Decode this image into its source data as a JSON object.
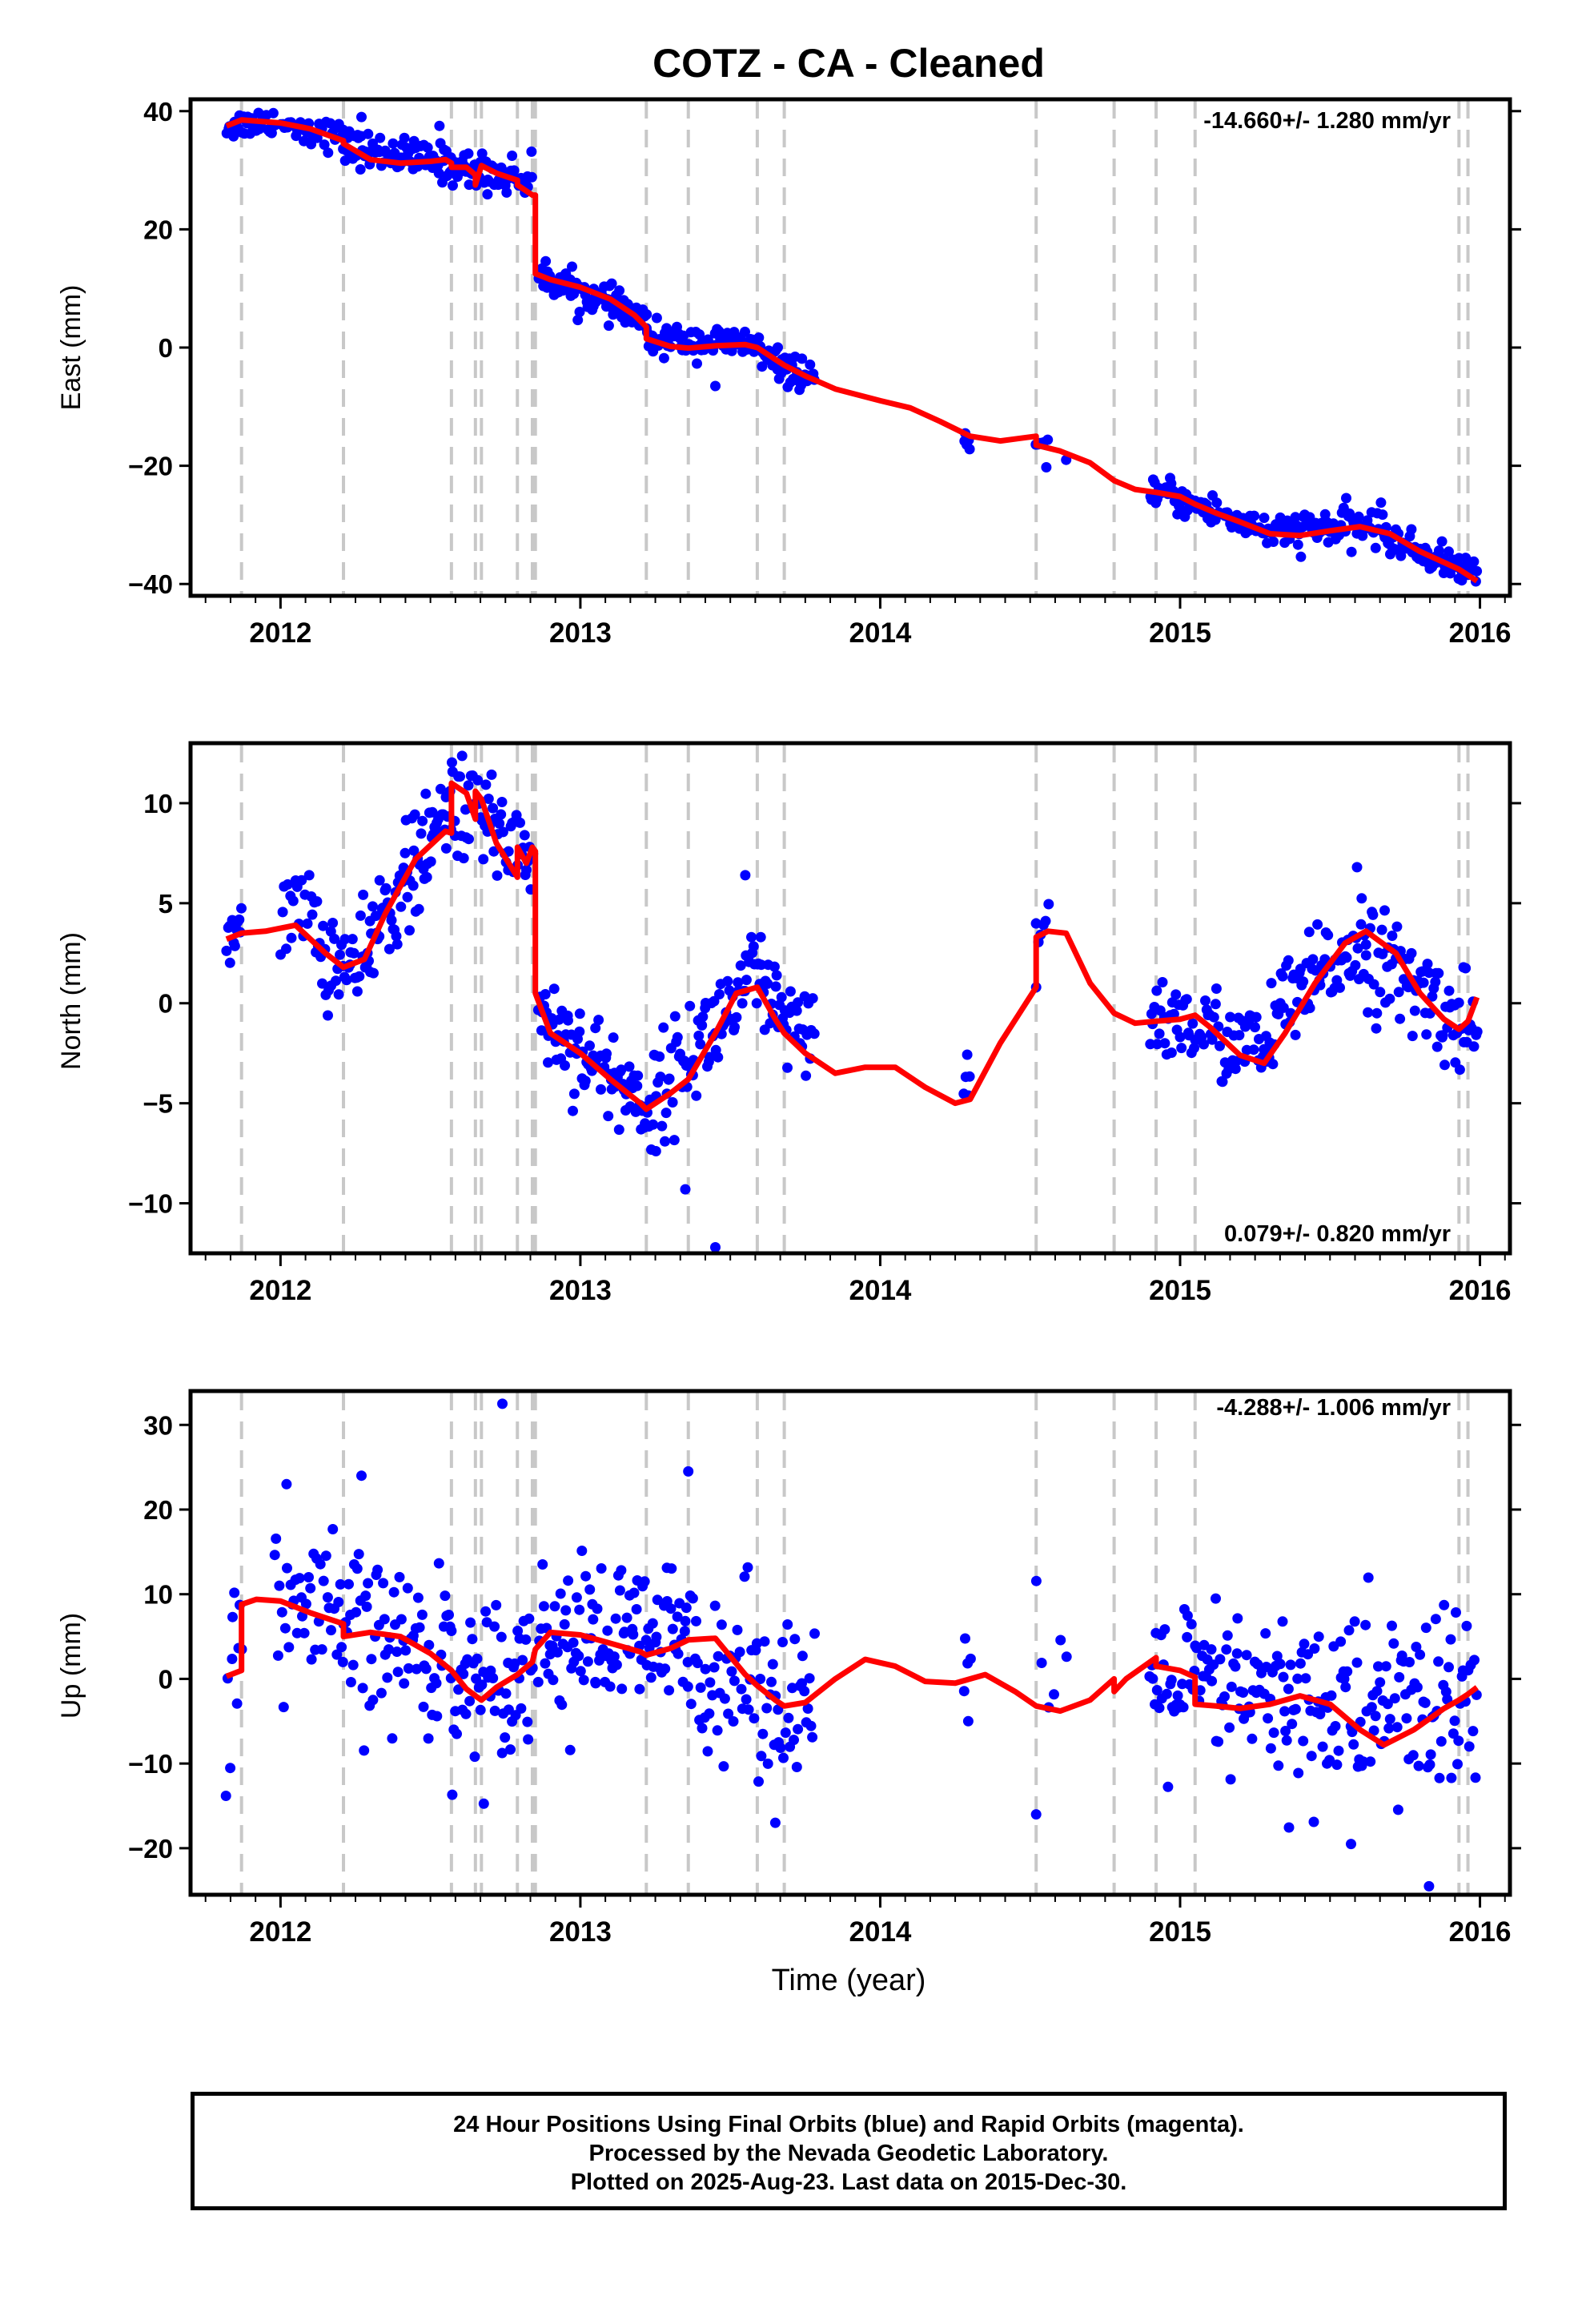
{
  "title": "COTZ  - CA - Cleaned",
  "xlabel": "Time (year)",
  "footer": {
    "line1": "24 Hour Positions Using Final Orbits (blue) and Rapid Orbits (magenta).",
    "line2": "Processed by the Nevada Geodetic Laboratory.",
    "line3": "Plotted on 2025-Aug-23. Last data on 2015-Dec-30."
  },
  "colors": {
    "data": "#0000ff",
    "model": "#ff0000",
    "steps": "#c8c8c8",
    "axis": "#000000"
  },
  "chart_data": [
    {
      "type": "scatter",
      "component": "east",
      "ylabel": "East (mm)",
      "rate": "-14.660+/- 1.280 mm/yr",
      "xlim": [
        2011.7,
        2016.1
      ],
      "ylim": [
        -42,
        42
      ],
      "xticks": [
        2012,
        2013,
        2014,
        2015,
        2016
      ],
      "yticks": [
        -40,
        -20,
        0,
        20,
        40
      ],
      "steps": [
        2011.87,
        2012.21,
        2012.57,
        2012.65,
        2012.67,
        2012.79,
        2012.84,
        2012.85,
        2013.22,
        2013.36,
        2013.59,
        2013.68,
        2014.52,
        2014.78,
        2014.92,
        2015.05,
        2015.93,
        2015.96
      ],
      "segments": [
        {
          "x0": 2011.82,
          "x1": 2011.98,
          "y0": 37.5,
          "y1": 38.5,
          "noise": 1.2,
          "n": 30
        },
        {
          "x0": 2012.0,
          "x1": 2012.21,
          "y0": 38,
          "y1": 35.5,
          "noise": 1.3,
          "n": 30
        },
        {
          "x0": 2012.21,
          "x1": 2012.57,
          "y0": 34,
          "y1": 31,
          "noise": 1.5,
          "n": 80
        },
        {
          "x0": 2012.57,
          "x1": 2012.84,
          "y0": 30.5,
          "y1": 28.5,
          "noise": 1.6,
          "n": 60
        },
        {
          "x0": 2012.86,
          "x1": 2013.22,
          "y0": 12.5,
          "y1": 4.5,
          "noise": 1.4,
          "n": 90
        },
        {
          "x0": 2013.22,
          "x1": 2013.6,
          "y0": 1.5,
          "y1": 0.5,
          "noise": 1.3,
          "n": 80
        },
        {
          "x0": 2013.6,
          "x1": 2013.78,
          "y0": -1.5,
          "y1": -5.5,
          "noise": 1.3,
          "n": 40
        },
        {
          "x0": 2014.28,
          "x1": 2014.3,
          "y0": -16,
          "y1": -17.5,
          "noise": 0.8,
          "n": 5
        },
        {
          "x0": 2014.52,
          "x1": 2014.56,
          "y0": -16.5,
          "y1": -18,
          "noise": 1.0,
          "n": 6
        },
        {
          "x0": 2014.9,
          "x1": 2015.35,
          "y0": -24,
          "y1": -32,
          "noise": 1.4,
          "n": 90
        },
        {
          "x0": 2015.35,
          "x1": 2015.68,
          "y0": -31,
          "y1": -30,
          "noise": 1.6,
          "n": 70
        },
        {
          "x0": 2015.68,
          "x1": 2015.99,
          "y0": -32,
          "y1": -38.5,
          "noise": 1.3,
          "n": 70
        }
      ],
      "outliers": [
        [
          2012.53,
          37.5
        ],
        [
          2012.27,
          39
        ],
        [
          2013.45,
          -6.5
        ],
        [
          2014.62,
          -19
        ]
      ],
      "model": [
        [
          2011.82,
          37.5
        ],
        [
          2011.87,
          38.5
        ],
        [
          2012.0,
          38
        ],
        [
          2012.1,
          37
        ],
        [
          2012.21,
          35
        ],
        [
          2012.21,
          34.5
        ],
        [
          2012.3,
          31.8
        ],
        [
          2012.4,
          31.2
        ],
        [
          2012.5,
          31.5
        ],
        [
          2012.55,
          31.8
        ],
        [
          2012.57,
          31.2
        ],
        [
          2012.57,
          30.5
        ],
        [
          2012.62,
          30.5
        ],
        [
          2012.65,
          29.2
        ],
        [
          2012.65,
          27.5
        ],
        [
          2012.67,
          30.8
        ],
        [
          2012.72,
          29.5
        ],
        [
          2012.79,
          28.3
        ],
        [
          2012.79,
          27.5
        ],
        [
          2012.84,
          25.8
        ],
        [
          2012.85,
          25.8
        ],
        [
          2012.85,
          12.5
        ],
        [
          2012.9,
          11.5
        ],
        [
          2013.0,
          10.2
        ],
        [
          2013.1,
          8.2
        ],
        [
          2013.18,
          5.5
        ],
        [
          2013.22,
          3.5
        ],
        [
          2013.22,
          1.5
        ],
        [
          2013.3,
          0.2
        ],
        [
          2013.36,
          -0.1
        ],
        [
          2013.45,
          0.3
        ],
        [
          2013.55,
          0.5
        ],
        [
          2013.59,
          0
        ],
        [
          2013.65,
          -2
        ],
        [
          2013.68,
          -3
        ],
        [
          2013.75,
          -4.8
        ],
        [
          2013.85,
          -7
        ],
        [
          2014.0,
          -9
        ],
        [
          2014.1,
          -10.2
        ],
        [
          2014.2,
          -12.5
        ],
        [
          2014.3,
          -15
        ],
        [
          2014.4,
          -15.8
        ],
        [
          2014.52,
          -15
        ],
        [
          2014.52,
          -16.5
        ],
        [
          2014.6,
          -17.5
        ],
        [
          2014.7,
          -19.5
        ],
        [
          2014.78,
          -22.5
        ],
        [
          2014.85,
          -24
        ],
        [
          2014.92,
          -24.5
        ],
        [
          2015.0,
          -25.2
        ],
        [
          2015.05,
          -26.5
        ],
        [
          2015.12,
          -28
        ],
        [
          2015.2,
          -29.5
        ],
        [
          2015.3,
          -31.5
        ],
        [
          2015.4,
          -31.8
        ],
        [
          2015.5,
          -31
        ],
        [
          2015.6,
          -30.3
        ],
        [
          2015.7,
          -31.5
        ],
        [
          2015.8,
          -34.5
        ],
        [
          2015.93,
          -37.5
        ],
        [
          2015.99,
          -39.5
        ]
      ]
    },
    {
      "type": "scatter",
      "component": "north",
      "ylabel": "North (mm)",
      "rate": "0.079+/- 0.820 mm/yr",
      "xlim": [
        2011.7,
        2016.1
      ],
      "ylim": [
        -12.5,
        13
      ],
      "xticks": [
        2012,
        2013,
        2014,
        2015,
        2016
      ],
      "yticks": [
        -10,
        -5,
        0,
        5,
        10
      ],
      "steps": [
        2011.87,
        2012.21,
        2012.57,
        2012.65,
        2012.67,
        2012.79,
        2012.84,
        2012.85,
        2013.22,
        2013.36,
        2013.59,
        2013.68,
        2014.52,
        2014.78,
        2014.92,
        2015.05,
        2015.93,
        2015.96
      ],
      "segments": [
        {
          "x0": 2011.82,
          "x1": 2011.87,
          "y0": 3.2,
          "y1": 4.2,
          "noise": 0.8,
          "n": 12
        },
        {
          "x0": 2012.0,
          "x1": 2012.12,
          "y0": 4.5,
          "y1": 4.8,
          "noise": 1.0,
          "n": 20
        },
        {
          "x0": 2012.12,
          "x1": 2012.3,
          "y0": 2.5,
          "y1": 1.5,
          "noise": 1.2,
          "n": 40
        },
        {
          "x0": 2012.3,
          "x1": 2012.57,
          "y0": 3.5,
          "y1": 9.5,
          "noise": 1.3,
          "n": 70
        },
        {
          "x0": 2012.57,
          "x1": 2012.84,
          "y0": 10.5,
          "y1": 7.5,
          "noise": 1.4,
          "n": 60
        },
        {
          "x0": 2012.86,
          "x1": 2013.25,
          "y0": -0.5,
          "y1": -5.5,
          "noise": 1.2,
          "n": 90
        },
        {
          "x0": 2013.25,
          "x1": 2013.6,
          "y0": -4.5,
          "y1": 1.5,
          "noise": 1.3,
          "n": 80
        },
        {
          "x0": 2013.6,
          "x1": 2013.78,
          "y0": 0.5,
          "y1": -2.5,
          "noise": 1.2,
          "n": 40
        },
        {
          "x0": 2014.28,
          "x1": 2014.3,
          "y0": -3,
          "y1": -4.5,
          "noise": 1.0,
          "n": 5
        },
        {
          "x0": 2014.52,
          "x1": 2014.56,
          "y0": 3,
          "y1": 4.5,
          "noise": 1.2,
          "n": 6
        },
        {
          "x0": 2014.9,
          "x1": 2015.3,
          "y0": -0.5,
          "y1": -2.5,
          "noise": 1.1,
          "n": 80
        },
        {
          "x0": 2015.3,
          "x1": 2015.62,
          "y0": -1,
          "y1": 3.5,
          "noise": 1.2,
          "n": 70
        },
        {
          "x0": 2015.62,
          "x1": 2015.99,
          "y0": 2.5,
          "y1": -1.5,
          "noise": 1.3,
          "n": 80
        }
      ],
      "outliers": [
        [
          2013.35,
          -9.3
        ],
        [
          2013.45,
          -12.2
        ],
        [
          2013.55,
          6.4
        ],
        [
          2014.52,
          0.8
        ],
        [
          2015.59,
          6.8
        ]
      ],
      "model": [
        [
          2011.82,
          3.2
        ],
        [
          2011.87,
          3.5
        ],
        [
          2011.95,
          3.6
        ],
        [
          2012.05,
          3.9
        ],
        [
          2012.15,
          2.5
        ],
        [
          2012.21,
          1.8
        ],
        [
          2012.28,
          2.2
        ],
        [
          2012.35,
          4.5
        ],
        [
          2012.45,
          7.2
        ],
        [
          2012.55,
          8.6
        ],
        [
          2012.57,
          8.5
        ],
        [
          2012.57,
          11
        ],
        [
          2012.62,
          10.5
        ],
        [
          2012.65,
          9.2
        ],
        [
          2012.65,
          10.6
        ],
        [
          2012.67,
          10.2
        ],
        [
          2012.72,
          8
        ],
        [
          2012.79,
          6.3
        ],
        [
          2012.79,
          7.8
        ],
        [
          2012.82,
          7
        ],
        [
          2012.84,
          7.8
        ],
        [
          2012.85,
          7.6
        ],
        [
          2012.85,
          0.5
        ],
        [
          2012.9,
          -1.5
        ],
        [
          2013.0,
          -2.5
        ],
        [
          2013.1,
          -3.8
        ],
        [
          2013.2,
          -5
        ],
        [
          2013.22,
          -5.3
        ],
        [
          2013.3,
          -4.5
        ],
        [
          2013.36,
          -3.8
        ],
        [
          2013.45,
          -1.5
        ],
        [
          2013.52,
          0.5
        ],
        [
          2013.59,
          0.8
        ],
        [
          2013.65,
          -0.8
        ],
        [
          2013.68,
          -1.5
        ],
        [
          2013.75,
          -2.5
        ],
        [
          2013.85,
          -3.5
        ],
        [
          2013.95,
          -3.2
        ],
        [
          2014.05,
          -3.2
        ],
        [
          2014.15,
          -4.2
        ],
        [
          2014.25,
          -5
        ],
        [
          2014.3,
          -4.8
        ],
        [
          2014.4,
          -2
        ],
        [
          2014.52,
          0.8
        ],
        [
          2014.52,
          3.3
        ],
        [
          2014.56,
          3.6
        ],
        [
          2014.62,
          3.5
        ],
        [
          2014.7,
          1
        ],
        [
          2014.78,
          -0.5
        ],
        [
          2014.85,
          -1
        ],
        [
          2014.92,
          -0.9
        ],
        [
          2015.0,
          -0.8
        ],
        [
          2015.05,
          -0.6
        ],
        [
          2015.1,
          -1.2
        ],
        [
          2015.2,
          -2.6
        ],
        [
          2015.28,
          -3
        ],
        [
          2015.35,
          -1.5
        ],
        [
          2015.45,
          1
        ],
        [
          2015.55,
          3
        ],
        [
          2015.62,
          3.6
        ],
        [
          2015.72,
          2.5
        ],
        [
          2015.8,
          0.5
        ],
        [
          2015.88,
          -0.8
        ],
        [
          2015.93,
          -1.3
        ],
        [
          2015.96,
          -0.9
        ],
        [
          2015.99,
          0.3
        ]
      ]
    },
    {
      "type": "scatter",
      "component": "up",
      "ylabel": "Up (mm)",
      "rate": "-4.288+/- 1.006 mm/yr",
      "xlim": [
        2011.7,
        2016.1
      ],
      "ylim": [
        -25.5,
        34
      ],
      "xticks": [
        2012,
        2013,
        2014,
        2015,
        2016
      ],
      "yticks": [
        -20,
        -10,
        0,
        10,
        20,
        30
      ],
      "steps": [
        2011.87,
        2012.21,
        2012.57,
        2012.65,
        2012.67,
        2012.79,
        2012.84,
        2012.85,
        2013.22,
        2013.36,
        2013.59,
        2013.68,
        2014.52,
        2014.78,
        2014.92,
        2015.05,
        2015.93,
        2015.96
      ],
      "segments": [
        {
          "x0": 2011.82,
          "x1": 2011.87,
          "y0": 0,
          "y1": 2,
          "noise": 6,
          "n": 10
        },
        {
          "x0": 2011.98,
          "x1": 2012.21,
          "y0": 9,
          "y1": 6,
          "noise": 5,
          "n": 40
        },
        {
          "x0": 2012.21,
          "x1": 2012.57,
          "y0": 5,
          "y1": 3,
          "noise": 5,
          "n": 70
        },
        {
          "x0": 2012.57,
          "x1": 2012.84,
          "y0": -1,
          "y1": 2,
          "noise": 4.5,
          "n": 60
        },
        {
          "x0": 2012.86,
          "x1": 2013.36,
          "y0": 5,
          "y1": 4,
          "noise": 4.5,
          "n": 110
        },
        {
          "x0": 2013.36,
          "x1": 2013.78,
          "y0": 3,
          "y1": -3,
          "noise": 5,
          "n": 80
        },
        {
          "x0": 2014.28,
          "x1": 2014.3,
          "y0": 1,
          "y1": -2,
          "noise": 4,
          "n": 5
        },
        {
          "x0": 2014.52,
          "x1": 2014.62,
          "y0": -2,
          "y1": -4,
          "noise": 5,
          "n": 6
        },
        {
          "x0": 2014.9,
          "x1": 2015.35,
          "y0": 0,
          "y1": -3,
          "noise": 5,
          "n": 90
        },
        {
          "x0": 2015.35,
          "x1": 2015.99,
          "y0": -3,
          "y1": -3,
          "noise": 6,
          "n": 130
        }
      ],
      "outliers": [
        [
          2012.74,
          32.5
        ],
        [
          2012.27,
          24
        ],
        [
          2013.36,
          24.5
        ],
        [
          2012.02,
          23
        ],
        [
          2013.65,
          -17
        ],
        [
          2014.52,
          -16
        ],
        [
          2015.83,
          -24.5
        ],
        [
          2015.57,
          -19.5
        ]
      ],
      "model": [
        [
          2011.82,
          0.3
        ],
        [
          2011.87,
          1
        ],
        [
          2011.87,
          8.8
        ],
        [
          2011.92,
          9.4
        ],
        [
          2012.0,
          9.2
        ],
        [
          2012.1,
          7.8
        ],
        [
          2012.21,
          6.5
        ],
        [
          2012.21,
          5
        ],
        [
          2012.3,
          5.5
        ],
        [
          2012.4,
          5
        ],
        [
          2012.5,
          3
        ],
        [
          2012.57,
          1
        ],
        [
          2012.62,
          -1.2
        ],
        [
          2012.65,
          -2
        ],
        [
          2012.67,
          -2.5
        ],
        [
          2012.72,
          -1
        ],
        [
          2012.79,
          0.5
        ],
        [
          2012.84,
          2
        ],
        [
          2012.85,
          3.5
        ],
        [
          2012.9,
          5.5
        ],
        [
          2013.0,
          5.2
        ],
        [
          2013.1,
          4.2
        ],
        [
          2013.2,
          3.2
        ],
        [
          2013.22,
          2.8
        ],
        [
          2013.3,
          3.6
        ],
        [
          2013.36,
          4.6
        ],
        [
          2013.45,
          4.8
        ],
        [
          2013.55,
          0.5
        ],
        [
          2013.59,
          -0.8
        ],
        [
          2013.65,
          -2.5
        ],
        [
          2013.68,
          -3.2
        ],
        [
          2013.75,
          -2.8
        ],
        [
          2013.85,
          0
        ],
        [
          2013.95,
          2.3
        ],
        [
          2014.05,
          1.5
        ],
        [
          2014.15,
          -0.3
        ],
        [
          2014.25,
          -0.5
        ],
        [
          2014.35,
          0.5
        ],
        [
          2014.45,
          -1.5
        ],
        [
          2014.52,
          -3.2
        ],
        [
          2014.6,
          -3.8
        ],
        [
          2014.7,
          -2.5
        ],
        [
          2014.78,
          0
        ],
        [
          2014.78,
          -1.5
        ],
        [
          2014.82,
          0
        ],
        [
          2014.92,
          2.5
        ],
        [
          2014.92,
          1.5
        ],
        [
          2015.0,
          1
        ],
        [
          2015.05,
          0.2
        ],
        [
          2015.05,
          -3
        ],
        [
          2015.12,
          -3.2
        ],
        [
          2015.2,
          -3.5
        ],
        [
          2015.3,
          -3
        ],
        [
          2015.4,
          -2
        ],
        [
          2015.5,
          -3
        ],
        [
          2015.6,
          -6
        ],
        [
          2015.68,
          -7.8
        ],
        [
          2015.78,
          -6
        ],
        [
          2015.88,
          -3.5
        ],
        [
          2015.93,
          -2.5
        ],
        [
          2015.96,
          -1.8
        ],
        [
          2015.99,
          -1
        ]
      ]
    }
  ]
}
